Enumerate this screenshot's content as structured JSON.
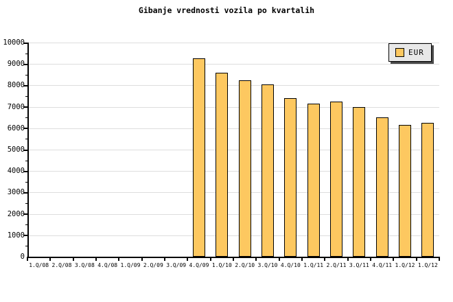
{
  "chart_data": {
    "type": "bar",
    "title": "Gibanje vrednosti vozila po kvartalih",
    "categories": [
      "1.Q/08",
      "2.Q/08",
      "3.Q/08",
      "4.Q/08",
      "1.Q/09",
      "2.Q/09",
      "3.Q/09",
      "4.Q/09",
      "1.Q/10",
      "2.Q/10",
      "3.Q/10",
      "4.Q/10",
      "1.Q/11",
      "2.Q/11",
      "3.Q/11",
      "4.Q/11",
      "1.Q/12",
      "1.Q/12"
    ],
    "series": [
      {
        "name": "EUR",
        "values": [
          null,
          null,
          null,
          null,
          null,
          null,
          null,
          9250,
          8600,
          8250,
          8050,
          7400,
          7150,
          7250,
          7000,
          6500,
          6150,
          6250
        ]
      }
    ],
    "xlabel": "",
    "ylabel": "",
    "ylim": [
      0,
      10000
    ],
    "ytick_step": 1000,
    "ytick_minor_step": 500,
    "grid": true,
    "legend_position": "top-right"
  },
  "colors": {
    "background": "#FFFFFF",
    "bar_fill": "#FDC860",
    "bar_border": "#000000",
    "grid": "#DDDDDD",
    "axis": "#000000",
    "text": "#000000",
    "legend_bg": "#E8E8E8",
    "legend_shadow": "#4A4A4A"
  }
}
